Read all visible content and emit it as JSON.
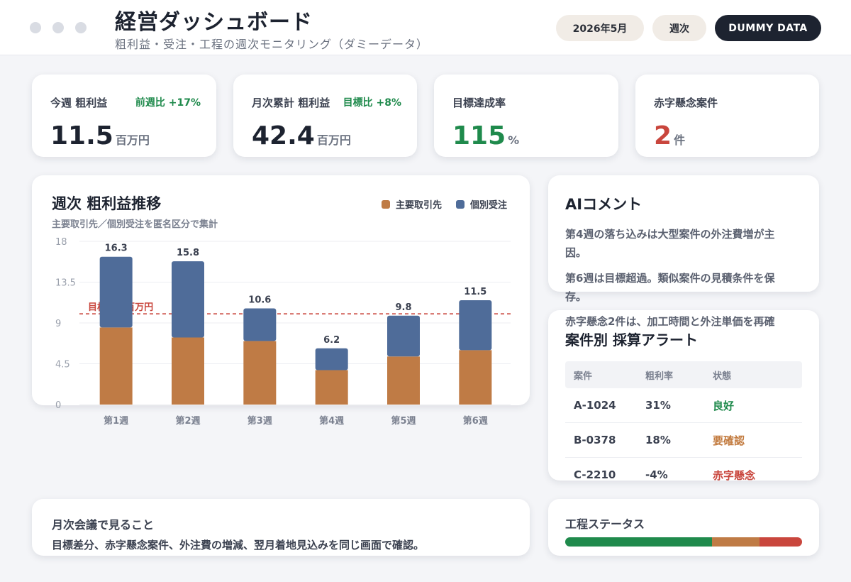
{
  "header": {
    "title": "経営ダッシュボード",
    "subtitle": "粗利益・受注・工程の週次モニタリング（ダミーデータ）",
    "month": "2026年5月",
    "period": "週次",
    "badge": "DUMMY DATA"
  },
  "kpis": [
    {
      "label": "今週 粗利益",
      "delta": "前週比 +17%",
      "value": "11.5",
      "unit": "百万円"
    },
    {
      "label": "月次累計 粗利益",
      "delta": "目標比 +8%",
      "value": "42.4",
      "unit": "百万円"
    },
    {
      "label": "目標達成率",
      "delta": "",
      "value": "115",
      "unit": "%"
    },
    {
      "label": "赤字懸念案件",
      "delta": "",
      "value": "2",
      "unit": "件"
    }
  ],
  "chart": {
    "title": "週次 粗利益推移",
    "subtitle": "主要取引先／個別受注を匿名区分で集計",
    "target_label": "目標 10 百万円"
  },
  "chart_data": {
    "type": "bar",
    "stacked": true,
    "categories": [
      "第1週",
      "第2週",
      "第3週",
      "第4週",
      "第5週",
      "第6週"
    ],
    "series": [
      {
        "name": "主要取引先",
        "color": "#bf7b45",
        "values": [
          8.5,
          7.4,
          7.0,
          3.8,
          5.3,
          6.0
        ]
      },
      {
        "name": "個別受注",
        "color": "#4f6c99",
        "values": [
          7.8,
          8.4,
          3.6,
          2.4,
          4.5,
          5.5
        ]
      }
    ],
    "totals": [
      "16.3",
      "15.8",
      "10.6",
      "6.2",
      "9.8",
      "11.5"
    ],
    "ylim": [
      0,
      18
    ],
    "yticks": [
      0,
      4.5,
      9,
      13.5,
      18
    ],
    "target": 10,
    "grid": true,
    "legend": "top-right"
  },
  "ai": {
    "title": "AIコメント",
    "lines": [
      "第4週の落ち込みは大型案件の外注費増が主因。",
      "第6週は目標超過。類似案件の見積条件を保存。",
      "赤字懸念2件は、加工時間と外注単価を再確"
    ]
  },
  "alerts": {
    "title": "案件別 採算アラート",
    "columns": [
      "案件",
      "粗利率",
      "状態"
    ],
    "rows": [
      {
        "id": "A-1024",
        "margin": "31%",
        "status": "良好"
      },
      {
        "id": "B-0378",
        "margin": "18%",
        "status": "要確認"
      },
      {
        "id": "C-2210",
        "margin": "-4%",
        "status": "赤字懸念"
      }
    ]
  },
  "note": {
    "title": "月次会議で見ること",
    "text": "目標差分、赤字懸念案件、外注費の増減、翌月着地見込みを同じ画面で確認。"
  },
  "process": {
    "title": "工程ステータス",
    "segments": [
      {
        "fraction": 0.62,
        "color": "#1f8a4c"
      },
      {
        "fraction": 0.2,
        "color": "#bf7b45"
      },
      {
        "fraction": 0.18,
        "color": "#c9463d"
      }
    ]
  }
}
